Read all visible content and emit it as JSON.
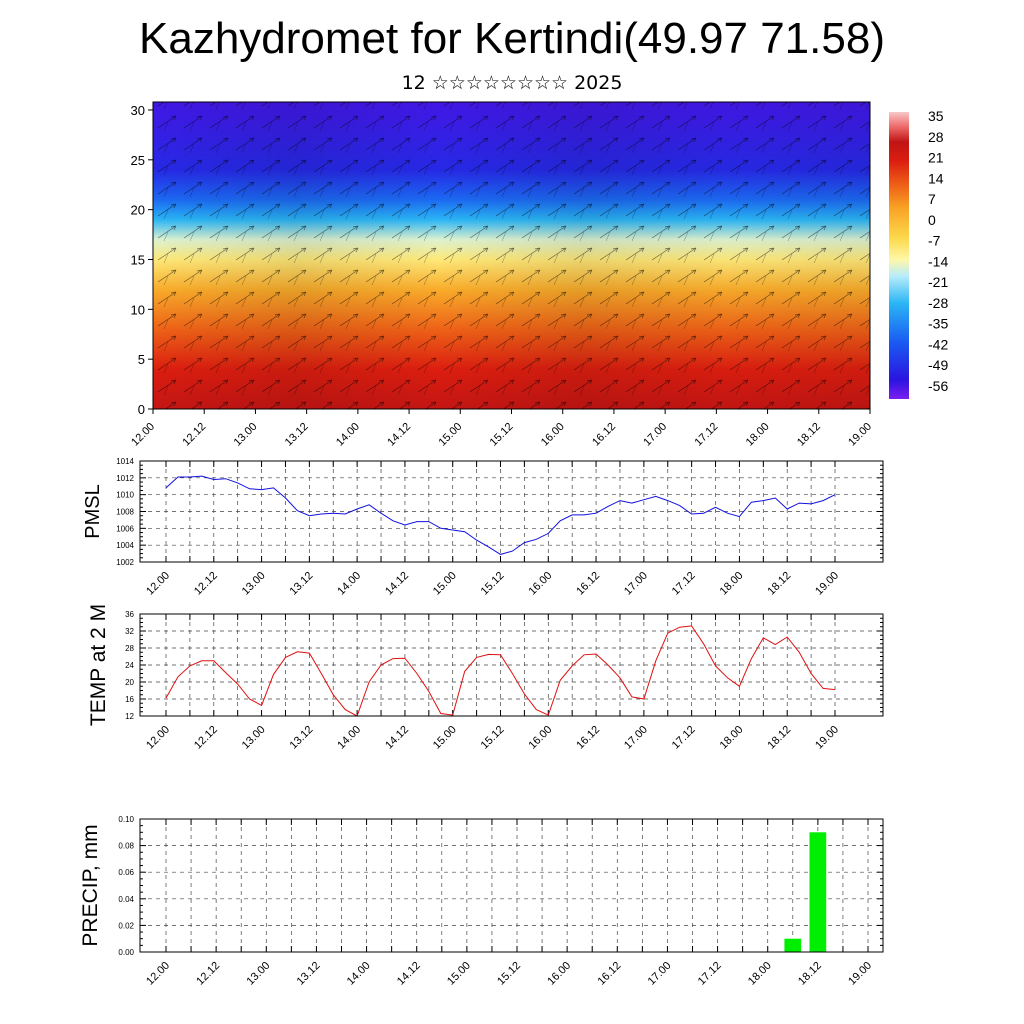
{
  "header": {
    "title": "Kazhydromet for Kertindi(49.97 71.58)",
    "subtitle": "12 ☆☆☆☆☆☆☆☆ 2025"
  },
  "time_ticks": [
    "12.00",
    "12.12",
    "13.00",
    "13.12",
    "14.00",
    "14.12",
    "15.00",
    "15.12",
    "16.00",
    "16.12",
    "17.00",
    "17.12",
    "18.00",
    "18.12",
    "19.00"
  ],
  "colors": {
    "pmsl_line": "#1010e0",
    "temp_line": "#e01010",
    "precip_bar": "#00ee00",
    "grid": "#444444"
  },
  "chart_data": [
    {
      "type": "heatmap",
      "title": "",
      "xlabel": "",
      "ylabel": "",
      "x_ticks": [
        "12.00",
        "12.12",
        "13.00",
        "13.12",
        "14.00",
        "14.12",
        "15.00",
        "15.12",
        "16.00",
        "16.12",
        "17.00",
        "17.12",
        "18.00",
        "18.12",
        "19.00"
      ],
      "y_ticks": [
        0,
        5,
        10,
        15,
        20,
        25,
        30
      ],
      "ylim": [
        0,
        30.8
      ],
      "colorbar": {
        "labels": [
          "35",
          "28",
          "21",
          "14",
          "7",
          "0",
          "-7",
          "-14",
          "-21",
          "-28",
          "-35",
          "-42",
          "-49",
          "-56"
        ],
        "range": [
          -63,
          42
        ],
        "stops": [
          {
            "t": -63,
            "c": "#7a1ef0"
          },
          {
            "t": -56,
            "c": "#2b14e0"
          },
          {
            "t": -42,
            "c": "#1a5cf2"
          },
          {
            "t": -28,
            "c": "#2ab5f5"
          },
          {
            "t": -18,
            "c": "#b8ecfa"
          },
          {
            "t": -12,
            "c": "#fff7a8"
          },
          {
            "t": -4,
            "c": "#fcd84a"
          },
          {
            "t": 7,
            "c": "#f8a224"
          },
          {
            "t": 14,
            "c": "#f06a18"
          },
          {
            "t": 24,
            "c": "#dc1e10"
          },
          {
            "t": 31,
            "c": "#c01414"
          },
          {
            "t": 37,
            "c": "#f07070"
          },
          {
            "t": 42,
            "c": "#f8c8c8"
          }
        ]
      },
      "profile": [
        {
          "h": 0,
          "v": 30
        },
        {
          "h": 4,
          "v": 24
        },
        {
          "h": 8,
          "v": 15
        },
        {
          "h": 12,
          "v": 5
        },
        {
          "h": 15,
          "v": -8
        },
        {
          "h": 17,
          "v": -15
        },
        {
          "h": 19,
          "v": -28
        },
        {
          "h": 21,
          "v": -40
        },
        {
          "h": 24,
          "v": -52
        },
        {
          "h": 30.8,
          "v": -58
        }
      ]
    },
    {
      "type": "line",
      "title": "",
      "xlabel": "",
      "ylabel": "PMSL",
      "ylim": [
        1002,
        1014
      ],
      "y_ticks": [
        1002,
        1004,
        1006,
        1008,
        1010,
        1012,
        1014
      ],
      "x_range": [
        0,
        168
      ],
      "series": [
        {
          "x": [
            0,
            3,
            6,
            9,
            12,
            15,
            18,
            21,
            24,
            27,
            30,
            33,
            36,
            39,
            42,
            45,
            48,
            51,
            54,
            57,
            60,
            63,
            66,
            69,
            72,
            75,
            78,
            81,
            84,
            87,
            90,
            93,
            96,
            99,
            102,
            105,
            108,
            111,
            114,
            117,
            120,
            123,
            126,
            129,
            132,
            135,
            138,
            141,
            144,
            147,
            150,
            153,
            156,
            159,
            162,
            165,
            168
          ],
          "values": [
            1010.8,
            1012.1,
            1012.1,
            1012.2,
            1011.8,
            1011.9,
            1011.4,
            1010.7,
            1010.6,
            1010.8,
            1009.6,
            1008.1,
            1007.5,
            1007.7,
            1007.8,
            1007.7,
            1008.3,
            1008.8,
            1007.8,
            1006.9,
            1006.4,
            1006.8,
            1006.8,
            1006.0,
            1005.8,
            1005.6,
            1004.6,
            1003.8,
            1002.9,
            1003.3,
            1004.3,
            1004.7,
            1005.4,
            1006.9,
            1007.6,
            1007.6,
            1007.8,
            1008.6,
            1009.3,
            1009.0,
            1009.4,
            1009.8,
            1009.3,
            1008.7,
            1007.7,
            1007.8,
            1008.5,
            1007.8,
            1007.4,
            1009.1,
            1009.3,
            1009.6,
            1008.3,
            1009.0,
            1008.9,
            1009.3,
            1010.0
          ]
        }
      ]
    },
    {
      "type": "line",
      "title": "",
      "xlabel": "",
      "ylabel": "TEMP at 2 M",
      "ylim": [
        12,
        36
      ],
      "y_ticks": [
        12,
        16,
        20,
        24,
        28,
        32,
        36
      ],
      "x_range": [
        0,
        168
      ],
      "series": [
        {
          "x": [
            0,
            3,
            6,
            9,
            12,
            15,
            18,
            21,
            24,
            27,
            30,
            33,
            36,
            39,
            42,
            45,
            48,
            51,
            54,
            57,
            60,
            63,
            66,
            69,
            72,
            75,
            78,
            81,
            84,
            87,
            90,
            93,
            96,
            99,
            102,
            105,
            108,
            111,
            114,
            117,
            120,
            123,
            126,
            129,
            132,
            135,
            138,
            141,
            144,
            147,
            150,
            153,
            156,
            159,
            162,
            165,
            168
          ],
          "values": [
            16.2,
            21.2,
            23.8,
            25.0,
            25.0,
            22.2,
            19.5,
            16.0,
            14.5,
            21.8,
            25.8,
            27.1,
            26.8,
            22.0,
            17.0,
            13.5,
            12.0,
            20.0,
            24.0,
            25.5,
            25.6,
            22.0,
            17.8,
            12.6,
            12.2,
            22.5,
            25.8,
            26.5,
            26.4,
            22.0,
            17.2,
            13.5,
            12.2,
            20.4,
            23.8,
            26.4,
            26.6,
            24.0,
            21.0,
            16.5,
            16.0,
            25.0,
            31.5,
            32.9,
            33.2,
            29.0,
            23.8,
            21.0,
            19.0,
            25.5,
            30.4,
            28.8,
            30.6,
            27.0,
            22.0,
            18.5,
            18.2
          ]
        }
      ]
    },
    {
      "type": "bar",
      "title": "",
      "xlabel": "",
      "ylabel": "PRECIP, mm",
      "ylim": [
        0,
        0.1
      ],
      "y_ticks": [
        "0.00",
        "0.02",
        "0.04",
        "0.06",
        "0.08",
        "0.10"
      ],
      "x_range": [
        0,
        168
      ],
      "bars": [
        {
          "x": 150,
          "value": 0.01
        },
        {
          "x": 156,
          "value": 0.09
        }
      ]
    }
  ]
}
